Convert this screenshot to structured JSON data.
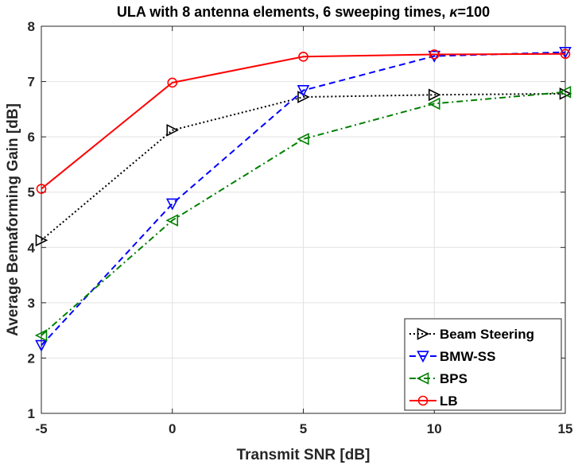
{
  "chart_data": {
    "type": "line",
    "title": "ULA with 8 antenna elements, 6 sweeping times, ",
    "title_symbol": "κ",
    "title_suffix": "=100",
    "xlabel": "Transmit SNR [dB]",
    "ylabel": "Average Bemaforming Gain [dB]",
    "x": [
      -5,
      0,
      5,
      10,
      15
    ],
    "xlim": [
      -5,
      15
    ],
    "ylim": [
      1,
      8
    ],
    "xticks": [
      -5,
      0,
      5,
      10,
      15
    ],
    "yticks": [
      1,
      2,
      3,
      4,
      5,
      6,
      7,
      8
    ],
    "xtick_labels": [
      "-5",
      "0",
      "5",
      "10",
      "15"
    ],
    "ytick_labels": [
      "1",
      "2",
      "3",
      "4",
      "5",
      "6",
      "7",
      "8"
    ],
    "grid": true,
    "legend_position": "bottom-right",
    "series": [
      {
        "name": "Beam Steering",
        "color": "#000000",
        "line_style": "dotted",
        "marker": "triangle-right",
        "values": [
          4.13,
          6.12,
          6.72,
          6.76,
          6.78
        ]
      },
      {
        "name": "BMW-SS",
        "color": "#0000ff",
        "line_style": "dashed",
        "marker": "triangle-down",
        "values": [
          2.23,
          4.79,
          6.84,
          7.46,
          7.53
        ]
      },
      {
        "name": "BPS",
        "color": "#008000",
        "line_style": "dash-dot",
        "marker": "triangle-left",
        "values": [
          2.41,
          4.49,
          5.96,
          6.6,
          6.81
        ]
      },
      {
        "name": "LB",
        "color": "#ff0000",
        "line_style": "solid",
        "marker": "circle",
        "values": [
          5.06,
          6.98,
          7.45,
          7.49,
          7.5
        ]
      }
    ]
  }
}
